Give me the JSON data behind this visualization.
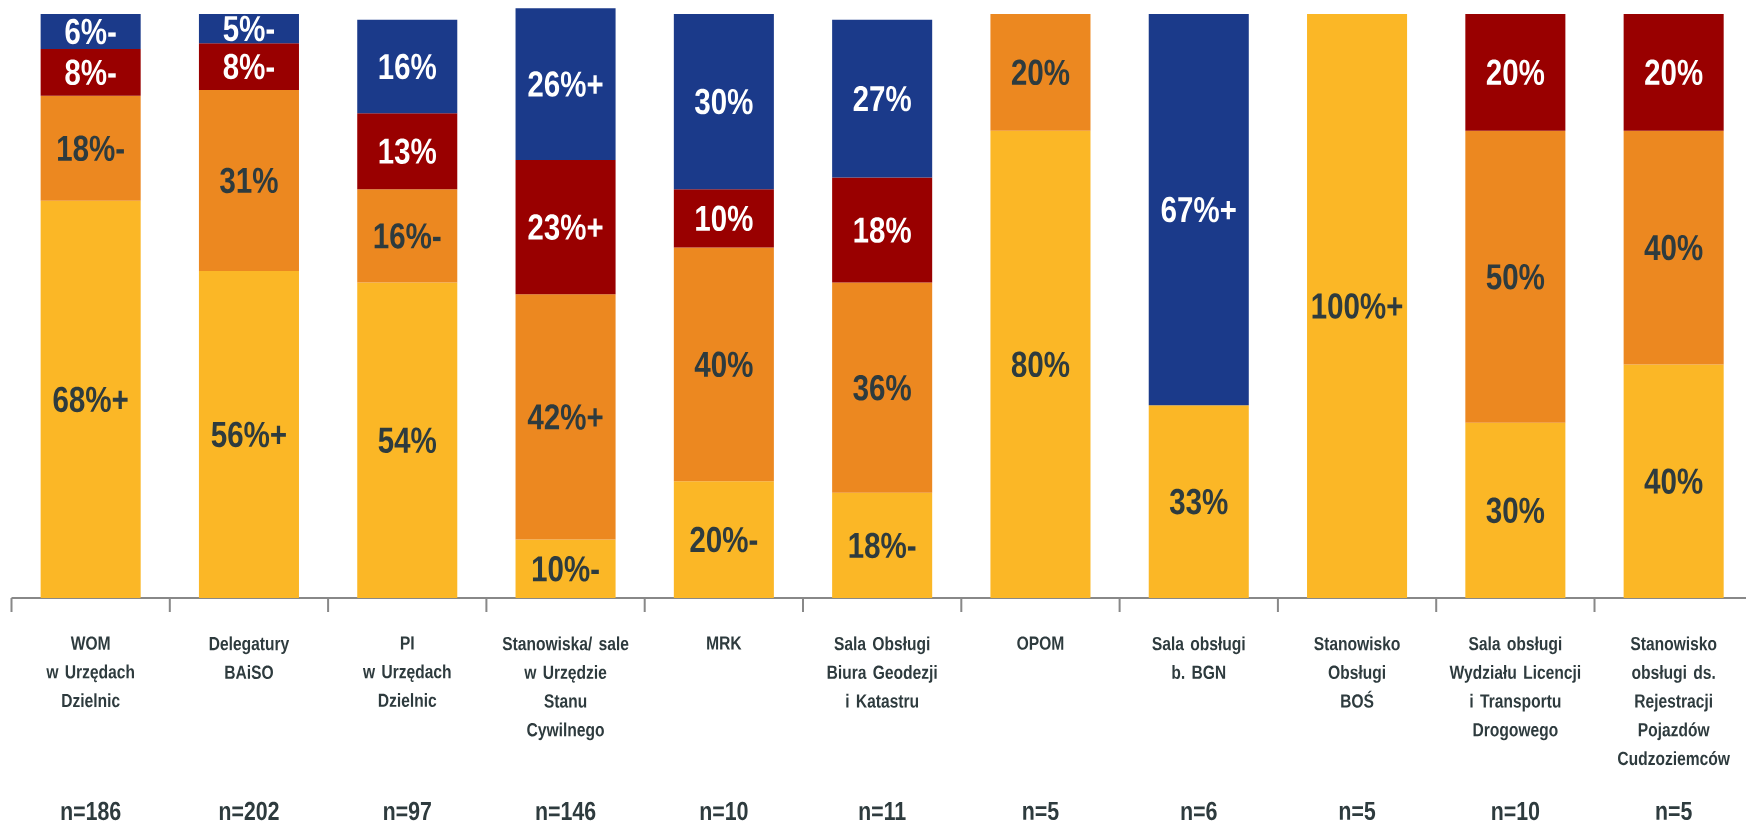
{
  "chart_data": {
    "type": "bar",
    "stacked": true,
    "categories": [
      "WOM\nw Urzędach\nDzielnic",
      "Delegatury\nBAiSO",
      "PI\nw Urzędach\nDzielnic",
      "Stanowiska/ sale\nw Urzędzie\nStanu\nCywilnego",
      "MRK",
      "Sala Obsługi\nBiura Geodezji\ni Katastru",
      "OPOM",
      "Sala obsługi\nb. BGN",
      "Stanowisko\nObsługi\nBOŚ",
      "Sala obsługi\nWydziału Licencji\ni Transportu\nDrogowego",
      "Stanowisko\nobsługi ds.\nRejestracji\nPojazdów\nCudzoziemców"
    ],
    "series": [
      {
        "color": "#FBB726",
        "values": [
          68,
          56,
          54,
          10,
          20,
          18,
          80,
          33,
          100,
          30,
          40
        ],
        "value_labels": [
          "68%+",
          "56%+",
          "54%",
          "10%-",
          "20%-",
          "18%-",
          "80%",
          "33%",
          "100%+",
          "30%",
          "40%"
        ]
      },
      {
        "color": "#EC8820",
        "values": [
          18,
          31,
          16,
          42,
          40,
          36,
          20,
          null,
          null,
          50,
          40
        ],
        "value_labels": [
          "18%-",
          "31%",
          "16%-",
          "42%+",
          "40%",
          "36%",
          "20%",
          null,
          null,
          "50%",
          "40%"
        ]
      },
      {
        "color": "#990000",
        "values": [
          8,
          8,
          13,
          23,
          10,
          18,
          null,
          null,
          null,
          20,
          20
        ],
        "value_labels": [
          "8%-",
          "8%-",
          "13%",
          "23%+",
          "10%",
          "18%",
          null,
          null,
          null,
          "20%",
          "20%"
        ]
      },
      {
        "color": "#1B3A8A",
        "values": [
          6,
          5,
          16,
          26,
          30,
          27,
          null,
          67,
          null,
          null,
          null
        ],
        "value_labels": [
          "6%-",
          "5%-",
          "16%",
          "26%+",
          "30%",
          "27%",
          null,
          "67%+",
          null,
          null,
          null
        ]
      }
    ],
    "annotations": [
      "n=186",
      "n=202",
      "n=97",
      "n=146",
      "n=10",
      "n=11",
      "n=5",
      "n=6",
      "n=5",
      "n=10",
      "n=5"
    ]
  }
}
